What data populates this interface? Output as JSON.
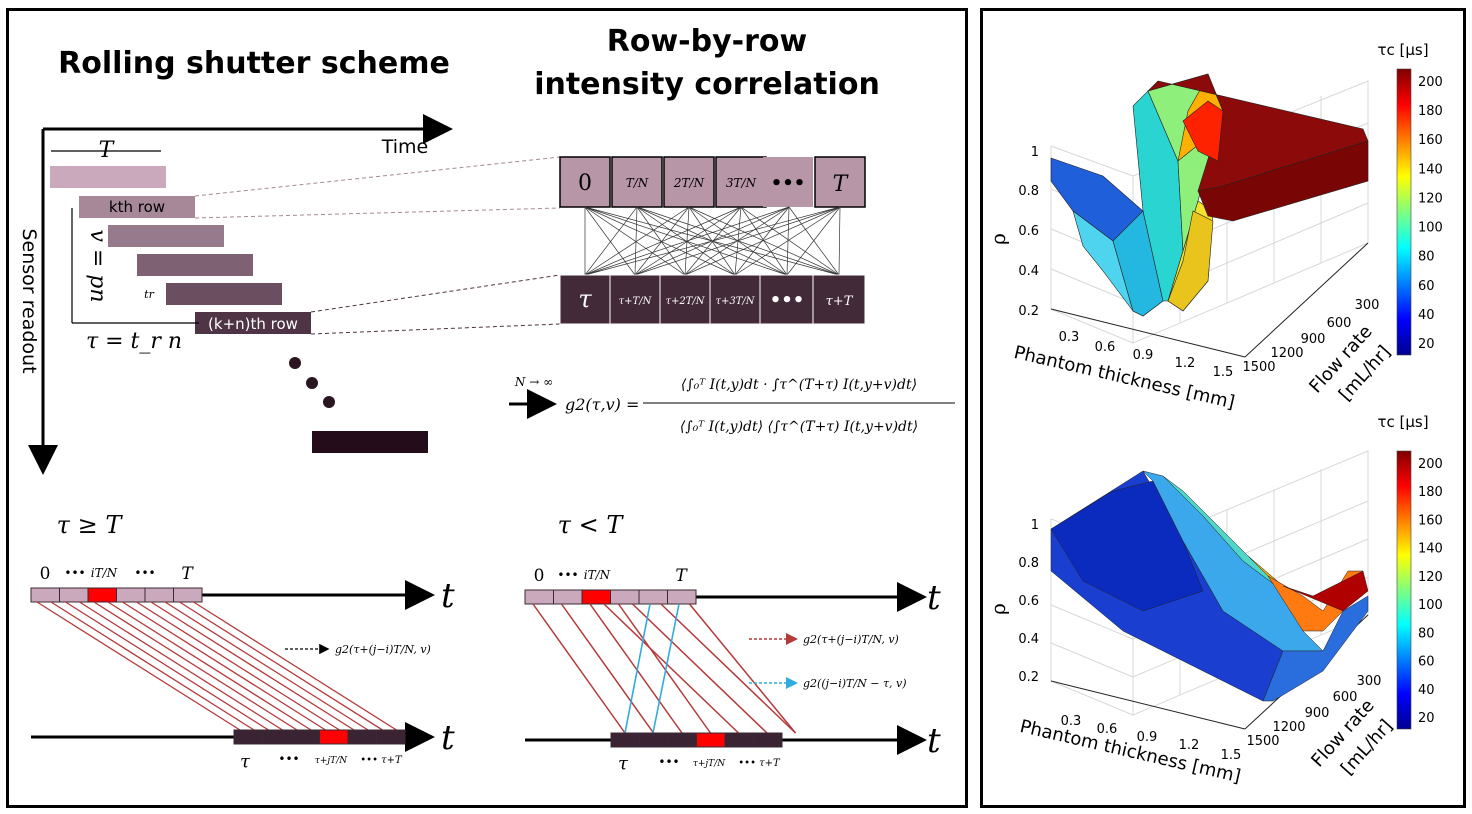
{
  "left": {
    "title_rolling": "Rolling shutter scheme",
    "title_corr_line1": "Row-by-row",
    "title_corr_line2": "intensity correlation",
    "time_label": "Time",
    "sensor_readout_label": "Sensor readout",
    "T_label": "T",
    "kth_row_label": "kth row",
    "kn_row_label": "(k+n)th row",
    "v_eq_pn": "v = pn",
    "tr_label": "tr",
    "tau_eq": "τ = t_r n",
    "top_cells": [
      "0",
      "T/N",
      "2T/N",
      "3T/N",
      "•••",
      "T"
    ],
    "bottom_cells": [
      "τ",
      "τ+T/N",
      "τ+2T/N",
      "τ+3T/N",
      "•••",
      "τ+T"
    ],
    "limit_label": "N → ∞",
    "g2_formula_lhs": "g2(τ,v) =",
    "g2_numerator": "⟨∫₀ᵀ I(t,y)dt · ∫τ^(T+τ) I(t,y+v)dt⟩",
    "g2_denominator": "⟨∫₀ᵀ I(t,y)dt⟩ ⟨∫τ^(T+τ) I(t,y+v)dt⟩",
    "case1_label": "τ ≥ T",
    "case2_label": "τ < T",
    "axis_t": "t",
    "top_tick_0": "0",
    "top_tick_dots": "•••",
    "top_tick_iTN": "iT/N",
    "top_tick_T": "T",
    "bottom_tick_tau": "τ",
    "bottom_tick_dots": "•••",
    "bottom_tick_tau_jTN": "τ+jT/N",
    "bottom_tick_tauT": "•••  τ+T",
    "legend1_case1": "g2(τ+(j−i)T/N, v)",
    "legend1_case2": "g2(τ+(j−i)T/N, v)",
    "legend2_case2": "g2((j−i)T/N − τ, v)",
    "colors": {
      "row_light": "#c9a9bb",
      "row_mid": "#8c6a80",
      "row_dark": "#3a2333",
      "highlight": "#ff0000",
      "line_red": "#b5393a",
      "line_blue": "#33aadd"
    }
  },
  "plots": [
    {
      "cbar_title": "τc [µs]",
      "cbar_ticks": [
        "200",
        "180",
        "160",
        "140",
        "120",
        "100",
        "80",
        "60",
        "40",
        "20"
      ],
      "z_label": "ρ",
      "z_ticks": [
        "1",
        "0.8",
        "0.6",
        "0.4",
        "0.2"
      ],
      "x_label": "Phantom thickness [mm]",
      "x_ticks": [
        "0.3",
        "0.6",
        "0.9",
        "1.2",
        "1.5"
      ],
      "y_label_line1": "Flow rate",
      "y_label_line2": "[mL/hr]",
      "y_ticks": [
        "300",
        "600",
        "900",
        "1200",
        "1500"
      ]
    },
    {
      "cbar_title": "τc [µs]",
      "cbar_ticks": [
        "200",
        "180",
        "160",
        "140",
        "120",
        "100",
        "80",
        "60",
        "40",
        "20"
      ],
      "z_label": "ρ",
      "z_ticks": [
        "1",
        "0.8",
        "0.6",
        "0.4",
        "0.2"
      ],
      "x_label": "Phantom thickness [mm]",
      "x_ticks": [
        "0.3",
        "0.6",
        "0.9",
        "1.2",
        "1.5"
      ],
      "y_label_line1": "Flow rate",
      "y_label_line2": "[mL/hr]",
      "y_ticks": [
        "300",
        "600",
        "900",
        "1200",
        "1500"
      ]
    }
  ]
}
